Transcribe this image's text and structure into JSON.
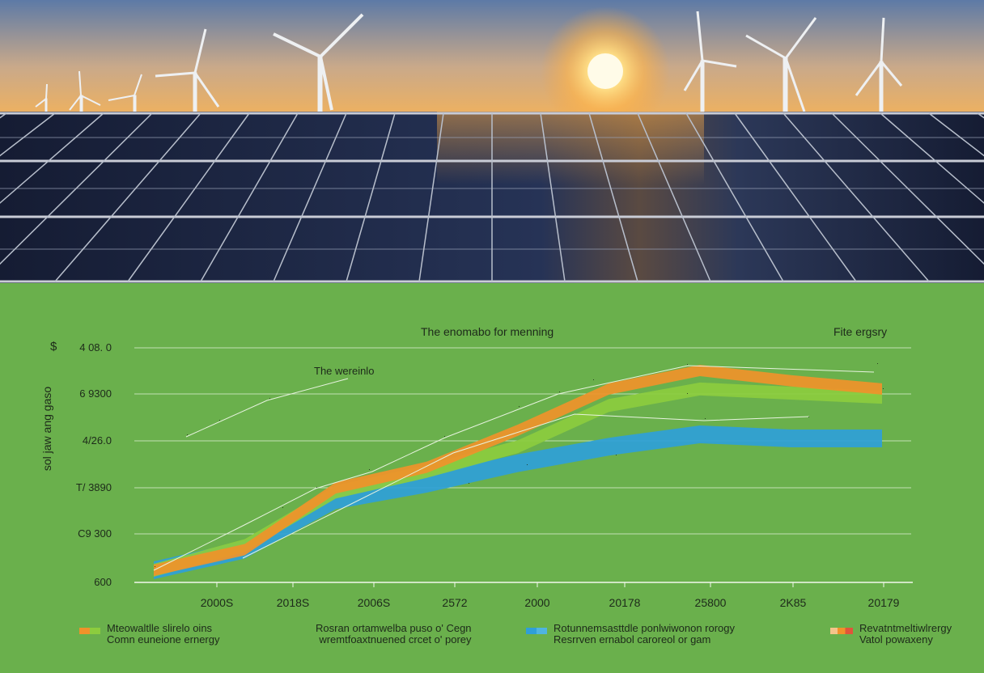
{
  "chart": {
    "title": "The enomabo for menning",
    "corner_label": "Fite ergsry",
    "inline_label": "The wereinlo",
    "currency_symbol": "$",
    "ylabel": "sol jaw ang gaso"
  },
  "colors": {
    "orange": "#f0922a",
    "green": "#8ccc3e",
    "blue": "#2f9fd8",
    "panel": "#1a2540",
    "background": "#6ab04c"
  },
  "chart_data": {
    "type": "area",
    "title": "The enomabo for menning",
    "ylabel": "sol jaw ang gaso",
    "xlabel": "",
    "x_tick_labels": [
      "2000S",
      "2018S",
      "2006S",
      "2572",
      "2000",
      "20178",
      "25800",
      "2K85",
      "20179"
    ],
    "y_tick_labels": [
      "600",
      "C9 300",
      "T/ 3890",
      "4/26.0",
      "6 9300",
      "4 08. 0"
    ],
    "series": [
      {
        "name": "Fite ergsry",
        "color": "#f0922a",
        "values": [
          0,
          0.5,
          2.0,
          2.5,
          3.4,
          4.4,
          4.85,
          4.6,
          4.4
        ]
      },
      {
        "name": "",
        "color": "#8ccc3e",
        "values": [
          0,
          0.6,
          1.9,
          2.4,
          3.0,
          4.0,
          4.4,
          4.3,
          4.2
        ]
      },
      {
        "name": "",
        "color": "#2f9fd8",
        "values": [
          0,
          0.5,
          1.7,
          2.1,
          2.6,
          3.0,
          3.3,
          3.2,
          3.2
        ]
      }
    ],
    "legend": "bottom",
    "grid": true
  },
  "legend": [
    {
      "line1": "Mteowaltlle slirelo oins",
      "line2": "Comn euneione ernergy",
      "color": "#f0922a",
      "color2": "#8ccc3e"
    },
    {
      "line1": "Rosran ortamwelba puso o' Cegn",
      "line2": "wremtfoaxtnuened crcet o' porey",
      "color": "#ffffff",
      "color2": "#ffffff"
    },
    {
      "line1": "Rotunnemsasttdle ponlwiwonon rorogy",
      "line2": "Resrrven ernabol caroreol or gam",
      "color": "#2f9fd8",
      "color2": "#4fb4e0"
    },
    {
      "line1": "Revatntmeltiwlrergy",
      "line2": "Vatol powaxeny",
      "color": "#f0922a",
      "color2": "#e88f5a"
    }
  ]
}
